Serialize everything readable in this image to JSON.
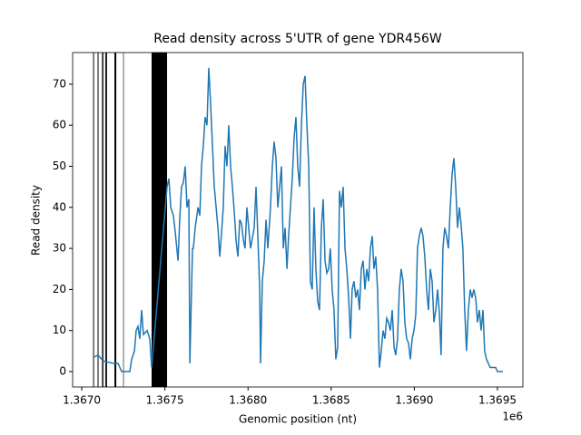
{
  "chart_data": {
    "type": "line",
    "title": "Read density across 5'UTR of gene YDR456W",
    "x_label": "Genomic position (nt)",
    "y_label": "Read density",
    "x_offset_label": "1e6",
    "xlim": [
      1366945,
      1369653
    ],
    "ylim": [
      -3.75,
      77.7
    ],
    "xticks": [
      {
        "value": 1367000,
        "label": "1.3670"
      },
      {
        "value": 1367500,
        "label": "1.3675"
      },
      {
        "value": 1368000,
        "label": "1.3680"
      },
      {
        "value": 1368500,
        "label": "1.3685"
      },
      {
        "value": 1369000,
        "label": "1.3690"
      },
      {
        "value": 1369500,
        "label": "1.3695"
      }
    ],
    "yticks": [
      0,
      10,
      20,
      30,
      40,
      50,
      60,
      70
    ],
    "vlines": [
      {
        "x": 1367071,
        "color": "#808080"
      },
      {
        "x": 1367098,
        "color": "#808080"
      },
      {
        "x": 1367126,
        "color": "#404040"
      },
      {
        "x": 1367147,
        "color": "#202020"
      },
      {
        "x": 1367202,
        "color": "#000000"
      },
      {
        "x": 1367251,
        "color": "#b0b0b0"
      }
    ],
    "vspan": {
      "x": [
        1367420,
        1367513
      ],
      "color": "#000000"
    },
    "series": [
      {
        "color": "#1f77b4",
        "x": [
          1367071,
          1367098,
          1367120,
          1367136,
          1367191,
          1367218,
          1367240,
          1367289,
          1367300,
          1367317,
          1367327,
          1367338,
          1367349,
          1367360,
          1367371,
          1367393,
          1367409,
          1367420,
          1367513,
          1367524,
          1367535,
          1367551,
          1367562,
          1367579,
          1367589,
          1367600,
          1367611,
          1367622,
          1367633,
          1367644,
          1367650,
          1367666,
          1367671,
          1367682,
          1367699,
          1367710,
          1367720,
          1367731,
          1367742,
          1367753,
          1367764,
          1367775,
          1367786,
          1367797,
          1367808,
          1367819,
          1367830,
          1367841,
          1367851,
          1367862,
          1367873,
          1367884,
          1367895,
          1367906,
          1367917,
          1367928,
          1367939,
          1367950,
          1367961,
          1367972,
          1367982,
          1367993,
          1368004,
          1368015,
          1368037,
          1368048,
          1368059,
          1368070,
          1368075,
          1368086,
          1368097,
          1368108,
          1368119,
          1368135,
          1368146,
          1368157,
          1368168,
          1368179,
          1368190,
          1368201,
          1368212,
          1368223,
          1368234,
          1368244,
          1368255,
          1368266,
          1368277,
          1368288,
          1368299,
          1368310,
          1368321,
          1368332,
          1368343,
          1368354,
          1368365,
          1368375,
          1368386,
          1368397,
          1368408,
          1368419,
          1368430,
          1368441,
          1368452,
          1368463,
          1368474,
          1368485,
          1368495,
          1368506,
          1368517,
          1368528,
          1368539,
          1368550,
          1368561,
          1368572,
          1368583,
          1368594,
          1368605,
          1368616,
          1368626,
          1368637,
          1368648,
          1368659,
          1368670,
          1368681,
          1368692,
          1368703,
          1368714,
          1368725,
          1368736,
          1368747,
          1368757,
          1368768,
          1368779,
          1368790,
          1368801,
          1368812,
          1368823,
          1368834,
          1368845,
          1368856,
          1368867,
          1368878,
          1368888,
          1368899,
          1368910,
          1368921,
          1368932,
          1368943,
          1368954,
          1368965,
          1368976,
          1368987,
          1368998,
          1369009,
          1369019,
          1369030,
          1369041,
          1369052,
          1369063,
          1369074,
          1369085,
          1369096,
          1369107,
          1369118,
          1369129,
          1369140,
          1369151,
          1369161,
          1369172,
          1369183,
          1369194,
          1369205,
          1369216,
          1369227,
          1369238,
          1369249,
          1369260,
          1369271,
          1369281,
          1369292,
          1369303,
          1369314,
          1369325,
          1369336,
          1369347,
          1369358,
          1369369,
          1369380,
          1369391,
          1369402,
          1369413,
          1369423,
          1369434,
          1369456,
          1369489,
          1369500,
          1369533
        ],
        "values": [
          3.5,
          4,
          3,
          2.5,
          2,
          2,
          0,
          0,
          3,
          5,
          10,
          11,
          8,
          15,
          9,
          10,
          8,
          1,
          45,
          47,
          40,
          38,
          34,
          27,
          37,
          45,
          46,
          50,
          40,
          42,
          2,
          30,
          30,
          35,
          40,
          38,
          50,
          55,
          62,
          60,
          74,
          65,
          55,
          45,
          40,
          35,
          28,
          34,
          40,
          55,
          50,
          60,
          50,
          45,
          39,
          32,
          28,
          37,
          36,
          32,
          30,
          40,
          35,
          30,
          35,
          45,
          33,
          20,
          2,
          22,
          27,
          37,
          30,
          40,
          50,
          56,
          52,
          40,
          45,
          50,
          30,
          35,
          25,
          33,
          40,
          47,
          57,
          62,
          50,
          45,
          60,
          70,
          72,
          60,
          50,
          22,
          20,
          40,
          25,
          17,
          15,
          35,
          42,
          27,
          24,
          25,
          30,
          20,
          15,
          3,
          6,
          44,
          40,
          45,
          30,
          25,
          18,
          8,
          20,
          22,
          18,
          20,
          15,
          25,
          27,
          20,
          25,
          22,
          30,
          33,
          25,
          28,
          20,
          1,
          5,
          10,
          8,
          13,
          12,
          10,
          15,
          6,
          4,
          8,
          20,
          25,
          22,
          12,
          8,
          7,
          3,
          8,
          10,
          14,
          30,
          33,
          35,
          33,
          28,
          20,
          15,
          25,
          22,
          12,
          15,
          20,
          14,
          4,
          30,
          35,
          33,
          30,
          40,
          48,
          52,
          45,
          35,
          40,
          36,
          30,
          15,
          5,
          15,
          20,
          18,
          20,
          18,
          12,
          15,
          10,
          15,
          5,
          3,
          1,
          1,
          0,
          0
        ]
      }
    ]
  }
}
